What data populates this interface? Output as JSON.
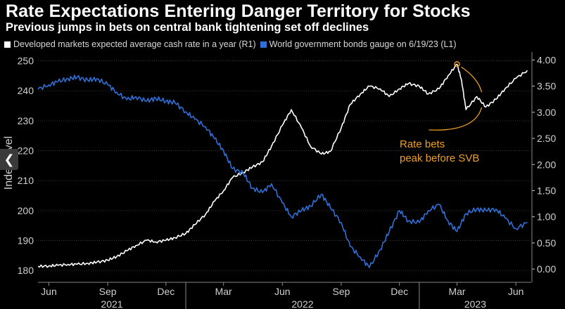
{
  "header": {
    "title": "Rate Expectations Entering Danger Territory for Stocks",
    "subtitle": "Previous jumps in bets on central bank tightening set off declines"
  },
  "nav": {
    "prev_icon": "chevron-left-icon"
  },
  "colors": {
    "background": "#000000",
    "white_series": "#ffffff",
    "blue_series": "#2f6fd6",
    "annotation": "#f0a020",
    "grid": "#333333",
    "axis_text": "#cfcfcf"
  },
  "chart_data": {
    "type": "line",
    "left_axis": {
      "label": "Index level",
      "ticks": [
        180,
        190,
        200,
        210,
        220,
        230,
        240,
        250
      ],
      "range": [
        177,
        252
      ]
    },
    "right_axis": {
      "ticks": [
        "0.00",
        "0.50",
        "1.00",
        "1.50",
        "2.00",
        "2.50",
        "3.00",
        "3.50",
        "4.00"
      ],
      "range": [
        -0.2,
        4.1
      ]
    },
    "x_axis": {
      "start": "2021-05-15",
      "end": "2023-06-25",
      "tick_labels": [
        {
          "label": "Jun",
          "date": "2021-06-01"
        },
        {
          "label": "Sep",
          "date": "2021-09-01"
        },
        {
          "label": "Dec",
          "date": "2021-12-01"
        },
        {
          "label": "Mar",
          "date": "2022-03-01"
        },
        {
          "label": "Jun",
          "date": "2022-06-01"
        },
        {
          "label": "Sep",
          "date": "2022-09-01"
        },
        {
          "label": "Dec",
          "date": "2022-12-01"
        },
        {
          "label": "Mar",
          "date": "2023-03-01"
        },
        {
          "label": "Jun",
          "date": "2023-06-01"
        }
      ],
      "year_labels": [
        {
          "label": "2021",
          "from": "2021-05-15",
          "to": "2022-01-01"
        },
        {
          "label": "2022",
          "from": "2022-01-01",
          "to": "2023-01-01"
        },
        {
          "label": "2023",
          "from": "2023-01-01",
          "to": "2023-06-25"
        }
      ]
    },
    "legend": {
      "placement": "top-left"
    },
    "grid": true,
    "series": [
      {
        "name": "Developed markets expected average cash rate in a year (R1)",
        "axis": "right",
        "color": "#ffffff",
        "points": [
          [
            "2021-05-15",
            0.05
          ],
          [
            "2021-06-01",
            0.06
          ],
          [
            "2021-06-15",
            0.07
          ],
          [
            "2021-07-01",
            0.09
          ],
          [
            "2021-07-15",
            0.09
          ],
          [
            "2021-08-01",
            0.11
          ],
          [
            "2021-08-15",
            0.13
          ],
          [
            "2021-09-01",
            0.17
          ],
          [
            "2021-09-15",
            0.24
          ],
          [
            "2021-10-01",
            0.35
          ],
          [
            "2021-10-15",
            0.45
          ],
          [
            "2021-11-01",
            0.55
          ],
          [
            "2021-11-15",
            0.52
          ],
          [
            "2021-12-01",
            0.55
          ],
          [
            "2021-12-15",
            0.6
          ],
          [
            "2022-01-01",
            0.68
          ],
          [
            "2022-01-15",
            0.85
          ],
          [
            "2022-02-01",
            1.05
          ],
          [
            "2022-02-15",
            1.3
          ],
          [
            "2022-03-01",
            1.5
          ],
          [
            "2022-03-15",
            1.75
          ],
          [
            "2022-04-01",
            1.85
          ],
          [
            "2022-04-15",
            1.95
          ],
          [
            "2022-05-01",
            2.05
          ],
          [
            "2022-05-15",
            2.35
          ],
          [
            "2022-06-01",
            2.75
          ],
          [
            "2022-06-15",
            3.05
          ],
          [
            "2022-07-01",
            2.7
          ],
          [
            "2022-07-15",
            2.35
          ],
          [
            "2022-08-01",
            2.2
          ],
          [
            "2022-08-15",
            2.25
          ],
          [
            "2022-09-01",
            2.7
          ],
          [
            "2022-09-15",
            3.15
          ],
          [
            "2022-10-01",
            3.35
          ],
          [
            "2022-10-15",
            3.5
          ],
          [
            "2022-11-01",
            3.45
          ],
          [
            "2022-11-15",
            3.3
          ],
          [
            "2022-12-01",
            3.45
          ],
          [
            "2022-12-15",
            3.55
          ],
          [
            "2023-01-01",
            3.5
          ],
          [
            "2023-01-15",
            3.35
          ],
          [
            "2023-02-01",
            3.45
          ],
          [
            "2023-02-15",
            3.7
          ],
          [
            "2023-03-01",
            3.92
          ],
          [
            "2023-03-08",
            3.62
          ],
          [
            "2023-03-15",
            3.05
          ],
          [
            "2023-04-01",
            3.3
          ],
          [
            "2023-04-15",
            3.1
          ],
          [
            "2023-05-01",
            3.25
          ],
          [
            "2023-05-15",
            3.45
          ],
          [
            "2023-06-01",
            3.65
          ],
          [
            "2023-06-19",
            3.8
          ]
        ]
      },
      {
        "name": "World government bonds gauge on 6/19/23 (L1)",
        "axis": "left",
        "color": "#2f6fd6",
        "points": [
          [
            "2021-05-15",
            240.5
          ],
          [
            "2021-06-01",
            242.0
          ],
          [
            "2021-06-15",
            243.0
          ],
          [
            "2021-07-01",
            244.0
          ],
          [
            "2021-07-15",
            244.5
          ],
          [
            "2021-08-01",
            243.5
          ],
          [
            "2021-08-15",
            244.0
          ],
          [
            "2021-09-01",
            242.0
          ],
          [
            "2021-09-15",
            239.5
          ],
          [
            "2021-10-01",
            237.0
          ],
          [
            "2021-10-15",
            238.0
          ],
          [
            "2021-11-01",
            236.5
          ],
          [
            "2021-11-15",
            237.5
          ],
          [
            "2021-12-01",
            236.5
          ],
          [
            "2021-12-15",
            236.0
          ],
          [
            "2022-01-01",
            233.0
          ],
          [
            "2022-01-15",
            230.5
          ],
          [
            "2022-02-01",
            228.0
          ],
          [
            "2022-02-15",
            224.0
          ],
          [
            "2022-03-01",
            220.0
          ],
          [
            "2022-03-15",
            214.0
          ],
          [
            "2022-04-01",
            212.5
          ],
          [
            "2022-04-15",
            207.5
          ],
          [
            "2022-05-01",
            206.0
          ],
          [
            "2022-05-15",
            209.0
          ],
          [
            "2022-06-01",
            202.5
          ],
          [
            "2022-06-15",
            198.0
          ],
          [
            "2022-07-01",
            200.0
          ],
          [
            "2022-07-15",
            201.5
          ],
          [
            "2022-08-01",
            205.5
          ],
          [
            "2022-08-15",
            201.0
          ],
          [
            "2022-09-01",
            196.0
          ],
          [
            "2022-09-15",
            188.0
          ],
          [
            "2022-10-01",
            184.5
          ],
          [
            "2022-10-15",
            181.0
          ],
          [
            "2022-11-01",
            187.0
          ],
          [
            "2022-11-15",
            193.0
          ],
          [
            "2022-12-01",
            200.0
          ],
          [
            "2022-12-15",
            196.5
          ],
          [
            "2023-01-01",
            196.0
          ],
          [
            "2023-01-15",
            200.0
          ],
          [
            "2023-02-01",
            202.0
          ],
          [
            "2023-02-15",
            196.5
          ],
          [
            "2023-03-01",
            193.0
          ],
          [
            "2023-03-15",
            199.0
          ],
          [
            "2023-04-01",
            200.5
          ],
          [
            "2023-04-15",
            200.0
          ],
          [
            "2023-05-01",
            200.5
          ],
          [
            "2023-05-15",
            197.5
          ],
          [
            "2023-06-01",
            194.0
          ],
          [
            "2023-06-19",
            196.0
          ]
        ]
      }
    ],
    "annotations": [
      {
        "text": [
          "Rate bets",
          "peak before SVB"
        ],
        "color": "#f0a020",
        "points_to": {
          "series": "Developed markets expected average cash rate in a year (R1)",
          "date": "2023-03-01",
          "value": 3.92
        }
      }
    ]
  },
  "legend_items": [
    {
      "label": "Developed markets expected average cash rate in a year (R1)",
      "color": "#ffffff"
    },
    {
      "label": "World government bonds gauge on 6/19/23 (L1)",
      "color": "#2f6fd6"
    }
  ]
}
